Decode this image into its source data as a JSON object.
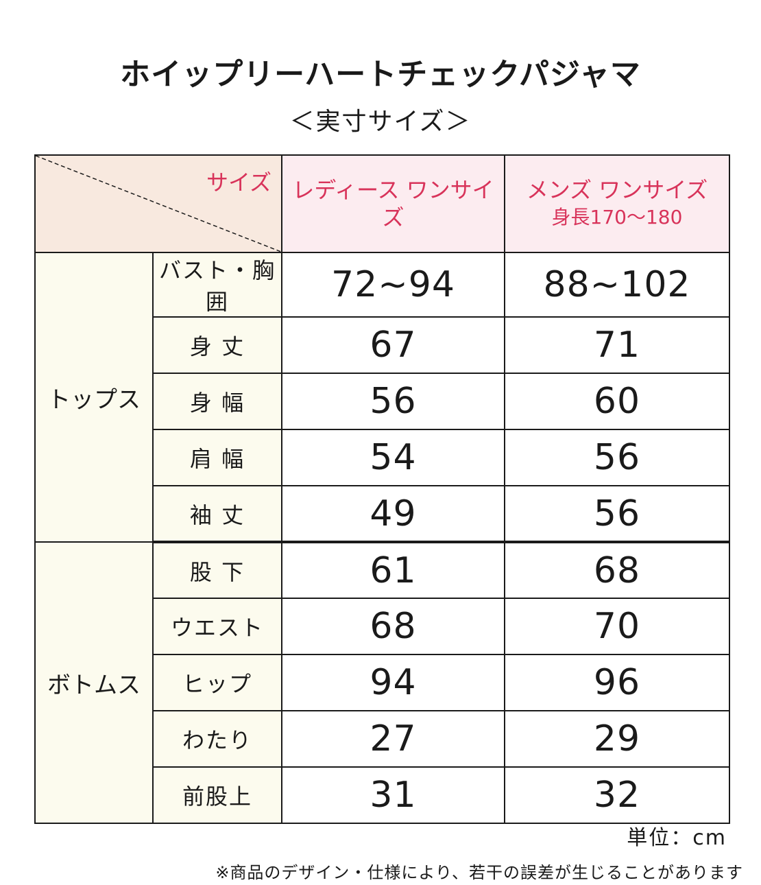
{
  "title": "ホイップリーハートチェックパジャマ",
  "subtitle": "＜実寸サイズ＞",
  "table": {
    "corner_label": "サイズ",
    "col_ladies": "レディース ワンサイズ",
    "col_mens": "メンズ ワンサイズ",
    "col_mens_sub": "身長170〜180",
    "groups": [
      {
        "label": "トップス",
        "rows": [
          {
            "label": "バスト・胸囲",
            "ladies": "72~94",
            "mens": "88~102"
          },
          {
            "label": "身 丈",
            "ladies": "67",
            "mens": "71"
          },
          {
            "label": "身 幅",
            "ladies": "56",
            "mens": "60"
          },
          {
            "label": "肩 幅",
            "ladies": "54",
            "mens": "56"
          },
          {
            "label": "袖 丈",
            "ladies": "49",
            "mens": "56"
          }
        ]
      },
      {
        "label": "ボトムス",
        "rows": [
          {
            "label": "股 下",
            "ladies": "61",
            "mens": "68"
          },
          {
            "label": "ウエスト",
            "ladies": "68",
            "mens": "70"
          },
          {
            "label": "ヒップ",
            "ladies": "94",
            "mens": "96"
          },
          {
            "label": "わたり",
            "ladies": "27",
            "mens": "29"
          },
          {
            "label": "前股上",
            "ladies": "31",
            "mens": "32"
          }
        ]
      }
    ]
  },
  "unit": "単位：cm",
  "note": "※商品のデザイン・仕様により、若干の誤差が生じることがあります",
  "colors": {
    "accent": "#d8335a",
    "corner_bg": "#f8e9df",
    "header_bg": "#fcecf0",
    "label_bg": "#fcfbee"
  }
}
